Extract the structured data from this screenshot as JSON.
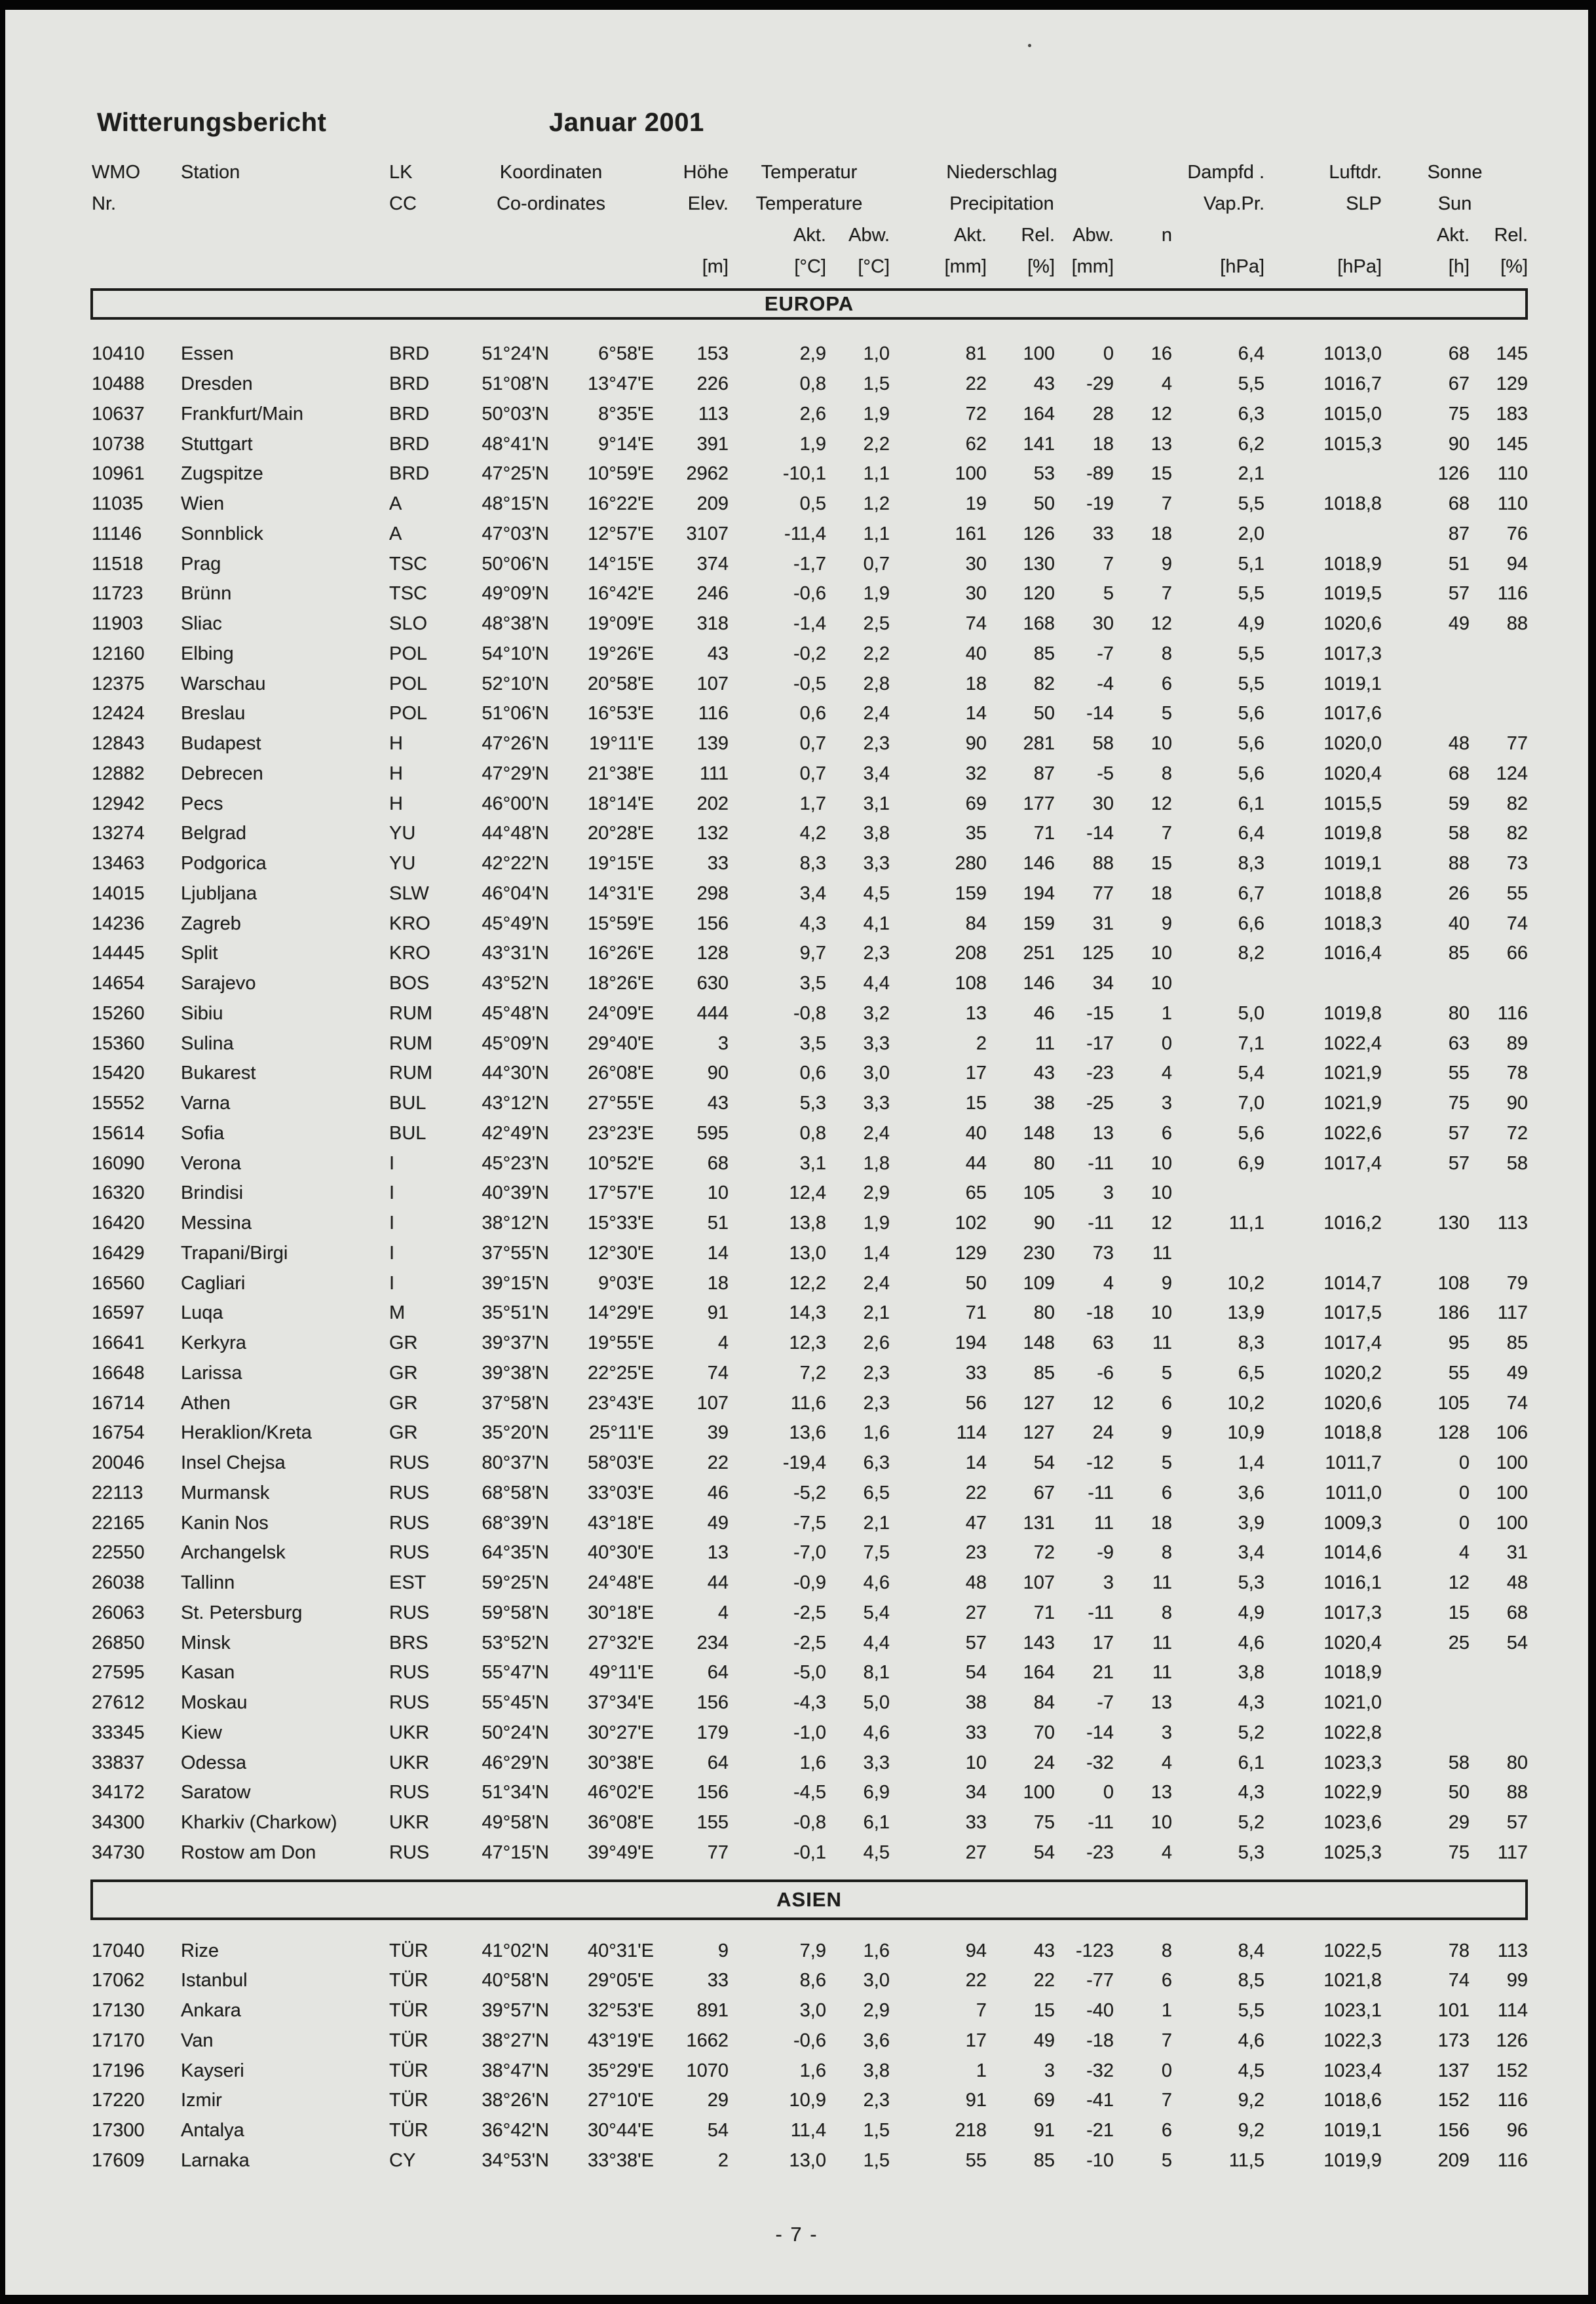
{
  "page": {
    "title_left": "Witterungsbericht",
    "title_right": "Januar 2001",
    "page_number": "- 7 -",
    "paper_color": "#e4e5e1",
    "ink_color": "#1d1d1b"
  },
  "header": {
    "row1": {
      "wmo": "WMO",
      "station": "Station",
      "lk": "LK",
      "koordinaten": "Koordinaten",
      "hoehe": "Höhe",
      "temperatur": "Temperatur",
      "niederschlag": "Niederschlag",
      "dampfd": "Dampfd .",
      "luftdr": "Luftdr.",
      "sonne": "Sonne"
    },
    "row2": {
      "nr": "Nr.",
      "cc": "CC",
      "coordinates": "Co-ordinates",
      "elev": "Elev.",
      "temperature": "Temperature",
      "precipitation": "Precipitation",
      "vappr": "Vap.Pr.",
      "slp": "SLP",
      "sun": "Sun"
    },
    "row3": {
      "t_akt": "Akt.",
      "t_abw": "Abw.",
      "p_akt": "Akt.",
      "p_rel": "Rel.",
      "p_abw": "Abw.",
      "p_n": "n",
      "s_akt": "Akt.",
      "s_rel": "Rel."
    },
    "row4": {
      "m": "[m]",
      "c1": "[°C]",
      "c2": "[°C]",
      "mm1": "[mm]",
      "pct1": "[%]",
      "mm2": "[mm]",
      "hpa1": "[hPa]",
      "hpa2": "[hPa]",
      "h": "[h]",
      "pct2": "[%]"
    }
  },
  "columns": {
    "keys": [
      "wmo",
      "station",
      "lk",
      "lat",
      "lon",
      "elev",
      "temp_akt",
      "temp_abw",
      "prec_akt",
      "prec_rel",
      "prec_abw",
      "prec_n",
      "vap_pr",
      "slp",
      "sun_akt",
      "sun_rel"
    ]
  },
  "sections": [
    {
      "name": "EUROPA",
      "rows": [
        [
          "10410",
          "Essen",
          "BRD",
          "51°24'N",
          "6°58'E",
          "153",
          "2,9",
          "1,0",
          "81",
          "100",
          "0",
          "16",
          "6,4",
          "1013,0",
          "68",
          "145"
        ],
        [
          "10488",
          "Dresden",
          "BRD",
          "51°08'N",
          "13°47'E",
          "226",
          "0,8",
          "1,5",
          "22",
          "43",
          "-29",
          "4",
          "5,5",
          "1016,7",
          "67",
          "129"
        ],
        [
          "10637",
          "Frankfurt/Main",
          "BRD",
          "50°03'N",
          "8°35'E",
          "113",
          "2,6",
          "1,9",
          "72",
          "164",
          "28",
          "12",
          "6,3",
          "1015,0",
          "75",
          "183"
        ],
        [
          "10738",
          "Stuttgart",
          "BRD",
          "48°41'N",
          "9°14'E",
          "391",
          "1,9",
          "2,2",
          "62",
          "141",
          "18",
          "13",
          "6,2",
          "1015,3",
          "90",
          "145"
        ],
        [
          "10961",
          "Zugspitze",
          "BRD",
          "47°25'N",
          "10°59'E",
          "2962",
          "-10,1",
          "1,1",
          "100",
          "53",
          "-89",
          "15",
          "2,1",
          "",
          "126",
          "110"
        ],
        [
          "11035",
          "Wien",
          "A",
          "48°15'N",
          "16°22'E",
          "209",
          "0,5",
          "1,2",
          "19",
          "50",
          "-19",
          "7",
          "5,5",
          "1018,8",
          "68",
          "110"
        ],
        [
          "11146",
          "Sonnblick",
          "A",
          "47°03'N",
          "12°57'E",
          "3107",
          "-11,4",
          "1,1",
          "161",
          "126",
          "33",
          "18",
          "2,0",
          "",
          "87",
          "76"
        ],
        [
          "11518",
          "Prag",
          "TSC",
          "50°06'N",
          "14°15'E",
          "374",
          "-1,7",
          "0,7",
          "30",
          "130",
          "7",
          "9",
          "5,1",
          "1018,9",
          "51",
          "94"
        ],
        [
          "11723",
          "Brünn",
          "TSC",
          "49°09'N",
          "16°42'E",
          "246",
          "-0,6",
          "1,9",
          "30",
          "120",
          "5",
          "7",
          "5,5",
          "1019,5",
          "57",
          "116"
        ],
        [
          "11903",
          "Sliac",
          "SLO",
          "48°38'N",
          "19°09'E",
          "318",
          "-1,4",
          "2,5",
          "74",
          "168",
          "30",
          "12",
          "4,9",
          "1020,6",
          "49",
          "88"
        ],
        [
          "12160",
          "Elbing",
          "POL",
          "54°10'N",
          "19°26'E",
          "43",
          "-0,2",
          "2,2",
          "40",
          "85",
          "-7",
          "8",
          "5,5",
          "1017,3",
          "",
          ""
        ],
        [
          "12375",
          "Warschau",
          "POL",
          "52°10'N",
          "20°58'E",
          "107",
          "-0,5",
          "2,8",
          "18",
          "82",
          "-4",
          "6",
          "5,5",
          "1019,1",
          "",
          ""
        ],
        [
          "12424",
          "Breslau",
          "POL",
          "51°06'N",
          "16°53'E",
          "116",
          "0,6",
          "2,4",
          "14",
          "50",
          "-14",
          "5",
          "5,6",
          "1017,6",
          "",
          ""
        ],
        [
          "12843",
          "Budapest",
          "H",
          "47°26'N",
          "19°11'E",
          "139",
          "0,7",
          "2,3",
          "90",
          "281",
          "58",
          "10",
          "5,6",
          "1020,0",
          "48",
          "77"
        ],
        [
          "12882",
          "Debrecen",
          "H",
          "47°29'N",
          "21°38'E",
          "111",
          "0,7",
          "3,4",
          "32",
          "87",
          "-5",
          "8",
          "5,6",
          "1020,4",
          "68",
          "124"
        ],
        [
          "12942",
          "Pecs",
          "H",
          "46°00'N",
          "18°14'E",
          "202",
          "1,7",
          "3,1",
          "69",
          "177",
          "30",
          "12",
          "6,1",
          "1015,5",
          "59",
          "82"
        ],
        [
          "13274",
          "Belgrad",
          "YU",
          "44°48'N",
          "20°28'E",
          "132",
          "4,2",
          "3,8",
          "35",
          "71",
          "-14",
          "7",
          "6,4",
          "1019,8",
          "58",
          "82"
        ],
        [
          "13463",
          "Podgorica",
          "YU",
          "42°22'N",
          "19°15'E",
          "33",
          "8,3",
          "3,3",
          "280",
          "146",
          "88",
          "15",
          "8,3",
          "1019,1",
          "88",
          "73"
        ],
        [
          "14015",
          "Ljubljana",
          "SLW",
          "46°04'N",
          "14°31'E",
          "298",
          "3,4",
          "4,5",
          "159",
          "194",
          "77",
          "18",
          "6,7",
          "1018,8",
          "26",
          "55"
        ],
        [
          "14236",
          "Zagreb",
          "KRO",
          "45°49'N",
          "15°59'E",
          "156",
          "4,3",
          "4,1",
          "84",
          "159",
          "31",
          "9",
          "6,6",
          "1018,3",
          "40",
          "74"
        ],
        [
          "14445",
          "Split",
          "KRO",
          "43°31'N",
          "16°26'E",
          "128",
          "9,7",
          "2,3",
          "208",
          "251",
          "125",
          "10",
          "8,2",
          "1016,4",
          "85",
          "66"
        ],
        [
          "14654",
          "Sarajevo",
          "BOS",
          "43°52'N",
          "18°26'E",
          "630",
          "3,5",
          "4,4",
          "108",
          "146",
          "34",
          "10",
          "",
          "",
          "",
          ""
        ],
        [
          "15260",
          "Sibiu",
          "RUM",
          "45°48'N",
          "24°09'E",
          "444",
          "-0,8",
          "3,2",
          "13",
          "46",
          "-15",
          "1",
          "5,0",
          "1019,8",
          "80",
          "116"
        ],
        [
          "15360",
          "Sulina",
          "RUM",
          "45°09'N",
          "29°40'E",
          "3",
          "3,5",
          "3,3",
          "2",
          "11",
          "-17",
          "0",
          "7,1",
          "1022,4",
          "63",
          "89"
        ],
        [
          "15420",
          "Bukarest",
          "RUM",
          "44°30'N",
          "26°08'E",
          "90",
          "0,6",
          "3,0",
          "17",
          "43",
          "-23",
          "4",
          "5,4",
          "1021,9",
          "55",
          "78"
        ],
        [
          "15552",
          "Varna",
          "BUL",
          "43°12'N",
          "27°55'E",
          "43",
          "5,3",
          "3,3",
          "15",
          "38",
          "-25",
          "3",
          "7,0",
          "1021,9",
          "75",
          "90"
        ],
        [
          "15614",
          "Sofia",
          "BUL",
          "42°49'N",
          "23°23'E",
          "595",
          "0,8",
          "2,4",
          "40",
          "148",
          "13",
          "6",
          "5,6",
          "1022,6",
          "57",
          "72"
        ],
        [
          "16090",
          "Verona",
          "I",
          "45°23'N",
          "10°52'E",
          "68",
          "3,1",
          "1,8",
          "44",
          "80",
          "-11",
          "10",
          "6,9",
          "1017,4",
          "57",
          "58"
        ],
        [
          "16320",
          "Brindisi",
          "I",
          "40°39'N",
          "17°57'E",
          "10",
          "12,4",
          "2,9",
          "65",
          "105",
          "3",
          "10",
          "",
          "",
          "",
          ""
        ],
        [
          "16420",
          "Messina",
          "I",
          "38°12'N",
          "15°33'E",
          "51",
          "13,8",
          "1,9",
          "102",
          "90",
          "-11",
          "12",
          "11,1",
          "1016,2",
          "130",
          "113"
        ],
        [
          "16429",
          "Trapani/Birgi",
          "I",
          "37°55'N",
          "12°30'E",
          "14",
          "13,0",
          "1,4",
          "129",
          "230",
          "73",
          "11",
          "",
          "",
          "",
          ""
        ],
        [
          "16560",
          "Cagliari",
          "I",
          "39°15'N",
          "9°03'E",
          "18",
          "12,2",
          "2,4",
          "50",
          "109",
          "4",
          "9",
          "10,2",
          "1014,7",
          "108",
          "79"
        ],
        [
          "16597",
          "Luqa",
          "M",
          "35°51'N",
          "14°29'E",
          "91",
          "14,3",
          "2,1",
          "71",
          "80",
          "-18",
          "10",
          "13,9",
          "1017,5",
          "186",
          "117"
        ],
        [
          "16641",
          "Kerkyra",
          "GR",
          "39°37'N",
          "19°55'E",
          "4",
          "12,3",
          "2,6",
          "194",
          "148",
          "63",
          "11",
          "8,3",
          "1017,4",
          "95",
          "85"
        ],
        [
          "16648",
          "Larissa",
          "GR",
          "39°38'N",
          "22°25'E",
          "74",
          "7,2",
          "2,3",
          "33",
          "85",
          "-6",
          "5",
          "6,5",
          "1020,2",
          "55",
          "49"
        ],
        [
          "16714",
          "Athen",
          "GR",
          "37°58'N",
          "23°43'E",
          "107",
          "11,6",
          "2,3",
          "56",
          "127",
          "12",
          "6",
          "10,2",
          "1020,6",
          "105",
          "74"
        ],
        [
          "16754",
          "Heraklion/Kreta",
          "GR",
          "35°20'N",
          "25°11'E",
          "39",
          "13,6",
          "1,6",
          "114",
          "127",
          "24",
          "9",
          "10,9",
          "1018,8",
          "128",
          "106"
        ],
        [
          "20046",
          "Insel Chejsa",
          "RUS",
          "80°37'N",
          "58°03'E",
          "22",
          "-19,4",
          "6,3",
          "14",
          "54",
          "-12",
          "5",
          "1,4",
          "1011,7",
          "0",
          "100"
        ],
        [
          "22113",
          "Murmansk",
          "RUS",
          "68°58'N",
          "33°03'E",
          "46",
          "-5,2",
          "6,5",
          "22",
          "67",
          "-11",
          "6",
          "3,6",
          "1011,0",
          "0",
          "100"
        ],
        [
          "22165",
          "Kanin Nos",
          "RUS",
          "68°39'N",
          "43°18'E",
          "49",
          "-7,5",
          "2,1",
          "47",
          "131",
          "11",
          "18",
          "3,9",
          "1009,3",
          "0",
          "100"
        ],
        [
          "22550",
          "Archangelsk",
          "RUS",
          "64°35'N",
          "40°30'E",
          "13",
          "-7,0",
          "7,5",
          "23",
          "72",
          "-9",
          "8",
          "3,4",
          "1014,6",
          "4",
          "31"
        ],
        [
          "26038",
          "Tallinn",
          "EST",
          "59°25'N",
          "24°48'E",
          "44",
          "-0,9",
          "4,6",
          "48",
          "107",
          "3",
          "11",
          "5,3",
          "1016,1",
          "12",
          "48"
        ],
        [
          "26063",
          "St. Petersburg",
          "RUS",
          "59°58'N",
          "30°18'E",
          "4",
          "-2,5",
          "5,4",
          "27",
          "71",
          "-11",
          "8",
          "4,9",
          "1017,3",
          "15",
          "68"
        ],
        [
          "26850",
          "Minsk",
          "BRS",
          "53°52'N",
          "27°32'E",
          "234",
          "-2,5",
          "4,4",
          "57",
          "143",
          "17",
          "11",
          "4,6",
          "1020,4",
          "25",
          "54"
        ],
        [
          "27595",
          "Kasan",
          "RUS",
          "55°47'N",
          "49°11'E",
          "64",
          "-5,0",
          "8,1",
          "54",
          "164",
          "21",
          "11",
          "3,8",
          "1018,9",
          "",
          ""
        ],
        [
          "27612",
          "Moskau",
          "RUS",
          "55°45'N",
          "37°34'E",
          "156",
          "-4,3",
          "5,0",
          "38",
          "84",
          "-7",
          "13",
          "4,3",
          "1021,0",
          "",
          ""
        ],
        [
          "33345",
          "Kiew",
          "UKR",
          "50°24'N",
          "30°27'E",
          "179",
          "-1,0",
          "4,6",
          "33",
          "70",
          "-14",
          "3",
          "5,2",
          "1022,8",
          "",
          ""
        ],
        [
          "33837",
          "Odessa",
          "UKR",
          "46°29'N",
          "30°38'E",
          "64",
          "1,6",
          "3,3",
          "10",
          "24",
          "-32",
          "4",
          "6,1",
          "1023,3",
          "58",
          "80"
        ],
        [
          "34172",
          "Saratow",
          "RUS",
          "51°34'N",
          "46°02'E",
          "156",
          "-4,5",
          "6,9",
          "34",
          "100",
          "0",
          "13",
          "4,3",
          "1022,9",
          "50",
          "88"
        ],
        [
          "34300",
          "Kharkiv (Charkow)",
          "UKR",
          "49°58'N",
          "36°08'E",
          "155",
          "-0,8",
          "6,1",
          "33",
          "75",
          "-11",
          "10",
          "5,2",
          "1023,6",
          "29",
          "57"
        ],
        [
          "34730",
          "Rostow am Don",
          "RUS",
          "47°15'N",
          "39°49'E",
          "77",
          "-0,1",
          "4,5",
          "27",
          "54",
          "-23",
          "4",
          "5,3",
          "1025,3",
          "75",
          "117"
        ]
      ]
    },
    {
      "name": "ASIEN",
      "rows": [
        [
          "17040",
          "Rize",
          "TÜR",
          "41°02'N",
          "40°31'E",
          "9",
          "7,9",
          "1,6",
          "94",
          "43",
          "-123",
          "8",
          "8,4",
          "1022,5",
          "78",
          "113"
        ],
        [
          "17062",
          "Istanbul",
          "TÜR",
          "40°58'N",
          "29°05'E",
          "33",
          "8,6",
          "3,0",
          "22",
          "22",
          "-77",
          "6",
          "8,5",
          "1021,8",
          "74",
          "99"
        ],
        [
          "17130",
          "Ankara",
          "TÜR",
          "39°57'N",
          "32°53'E",
          "891",
          "3,0",
          "2,9",
          "7",
          "15",
          "-40",
          "1",
          "5,5",
          "1023,1",
          "101",
          "114"
        ],
        [
          "17170",
          "Van",
          "TÜR",
          "38°27'N",
          "43°19'E",
          "1662",
          "-0,6",
          "3,6",
          "17",
          "49",
          "-18",
          "7",
          "4,6",
          "1022,3",
          "173",
          "126"
        ],
        [
          "17196",
          "Kayseri",
          "TÜR",
          "38°47'N",
          "35°29'E",
          "1070",
          "1,6",
          "3,8",
          "1",
          "3",
          "-32",
          "0",
          "4,5",
          "1023,4",
          "137",
          "152"
        ],
        [
          "17220",
          "Izmir",
          "TÜR",
          "38°26'N",
          "27°10'E",
          "29",
          "10,9",
          "2,3",
          "91",
          "69",
          "-41",
          "7",
          "9,2",
          "1018,6",
          "152",
          "116"
        ],
        [
          "17300",
          "Antalya",
          "TÜR",
          "36°42'N",
          "30°44'E",
          "54",
          "11,4",
          "1,5",
          "218",
          "91",
          "-21",
          "6",
          "9,2",
          "1019,1",
          "156",
          "96"
        ],
        [
          "17609",
          "Larnaka",
          "CY",
          "34°53'N",
          "33°38'E",
          "2",
          "13,0",
          "1,5",
          "55",
          "85",
          "-10",
          "5",
          "11,5",
          "1019,9",
          "209",
          "116"
        ]
      ]
    }
  ]
}
